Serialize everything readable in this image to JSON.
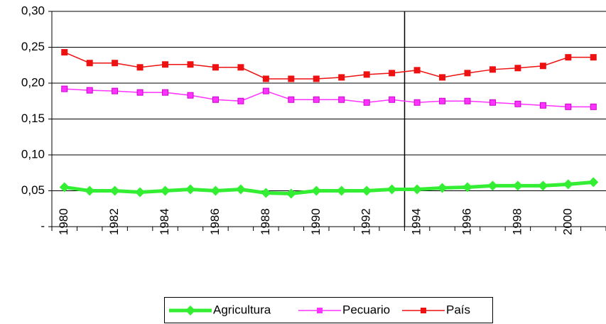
{
  "chart_data": {
    "type": "line",
    "categories": [
      "1980",
      null,
      "1982",
      null,
      "1984",
      null,
      "1986",
      null,
      "1988",
      null,
      "1990",
      null,
      "1992",
      null,
      "1994",
      null,
      "1996",
      null,
      "1998",
      null,
      "2000",
      null
    ],
    "series": [
      {
        "name": "Agricultura",
        "color": "#33ee33",
        "marker": "diamond",
        "values": [
          0.055,
          0.05,
          0.05,
          0.048,
          0.05,
          0.052,
          0.05,
          0.052,
          0.047,
          0.046,
          0.05,
          0.05,
          0.05,
          0.052,
          0.052,
          0.054,
          0.055,
          0.057,
          0.057,
          0.057,
          0.059,
          0.062
        ]
      },
      {
        "name": "Pecuario",
        "color": "#ff33ff",
        "marker": "square",
        "values": [
          0.192,
          0.19,
          0.189,
          0.187,
          0.187,
          0.183,
          0.177,
          0.175,
          0.189,
          0.177,
          0.177,
          0.177,
          0.173,
          0.177,
          0.173,
          0.175,
          0.175,
          0.173,
          0.171,
          0.169,
          0.167,
          0.167
        ]
      },
      {
        "name": "País",
        "color": "#ee1111",
        "marker": "square",
        "values": [
          0.243,
          0.228,
          0.228,
          0.222,
          0.226,
          0.226,
          0.222,
          0.222,
          0.206,
          0.206,
          0.206,
          0.208,
          0.212,
          0.214,
          0.218,
          0.208,
          0.214,
          0.219,
          0.221,
          0.224,
          0.236,
          0.236
        ]
      }
    ],
    "ylim": [
      0,
      0.3
    ],
    "yticks": [
      {
        "value": 0,
        "label": "-"
      },
      {
        "value": 0.05,
        "label": "0,05"
      },
      {
        "value": 0.1,
        "label": "0,10"
      },
      {
        "value": 0.15,
        "label": "0,15"
      },
      {
        "value": 0.2,
        "label": "0,20"
      },
      {
        "value": 0.25,
        "label": "0,25"
      },
      {
        "value": 0.3,
        "label": "0,30"
      }
    ],
    "grid": true,
    "legend": "bottom"
  }
}
